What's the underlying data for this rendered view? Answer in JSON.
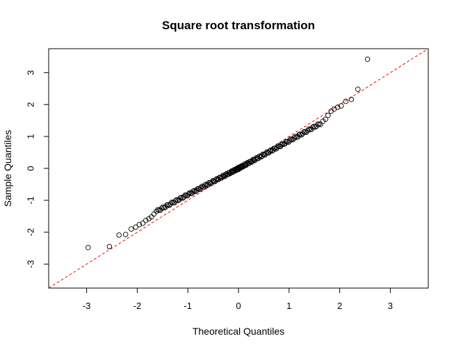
{
  "chart_data": {
    "type": "scatter",
    "title": "Square root transformation",
    "xlabel": "Theoretical Quantiles",
    "ylabel": "Sample Quantiles",
    "xlim": [
      -3.75,
      3.75
    ],
    "ylim": [
      -3.75,
      3.75
    ],
    "x_ticks": [
      "-3",
      "-2",
      "-1",
      "0",
      "1",
      "2",
      "3"
    ],
    "y_ticks": [
      "-3",
      "-2",
      "-1",
      "0",
      "1",
      "2",
      "3"
    ],
    "grid": false,
    "reference_line": {
      "slope": 1,
      "intercept": 0,
      "color": "#ff0000",
      "style": "dashed"
    },
    "point_color": "#000000",
    "tail_points": [
      {
        "x": -2.97,
        "y": -2.48
      },
      {
        "x": -2.55,
        "y": -2.45
      },
      {
        "x": -2.36,
        "y": -2.09
      },
      {
        "x": -2.23,
        "y": -2.07
      },
      {
        "x": -2.12,
        "y": -1.9
      },
      {
        "x": -2.03,
        "y": -1.84
      },
      {
        "x": -1.96,
        "y": -1.76
      },
      {
        "x": -1.89,
        "y": -1.72
      },
      {
        "x": -1.83,
        "y": -1.63
      },
      {
        "x": -1.77,
        "y": -1.58
      },
      {
        "x": -1.72,
        "y": -1.52
      },
      {
        "x": -1.67,
        "y": -1.43
      },
      {
        "x": 1.67,
        "y": 1.48
      },
      {
        "x": 1.72,
        "y": 1.54
      },
      {
        "x": 1.77,
        "y": 1.66
      },
      {
        "x": 1.83,
        "y": 1.79
      },
      {
        "x": 1.89,
        "y": 1.86
      },
      {
        "x": 1.96,
        "y": 1.92
      },
      {
        "x": 2.03,
        "y": 1.96
      },
      {
        "x": 2.12,
        "y": 2.1
      },
      {
        "x": 2.23,
        "y": 2.16
      },
      {
        "x": 2.36,
        "y": 2.48
      },
      {
        "x": 2.55,
        "y": 3.42
      }
    ],
    "body_profile": {
      "n_points": 170,
      "x_range": [
        -1.62,
        1.62
      ],
      "y_at_ends": [
        -1.35,
        1.4
      ],
      "note_slope_lower": 0.82,
      "note_slope_upper": 0.86
    }
  }
}
